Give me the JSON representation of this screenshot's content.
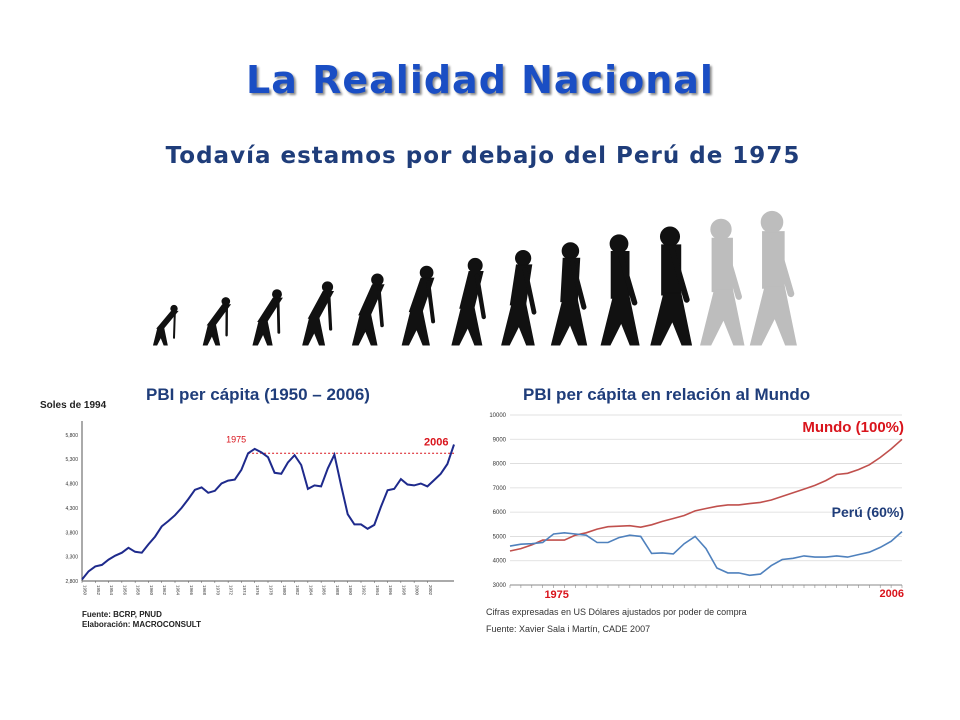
{
  "header": {
    "title": "La Realidad Nacional",
    "subtitle": "Todavía estamos por debajo del Perú de 1975"
  },
  "illustration": {
    "icon": "human-evolution-silhouettes-icon",
    "figure_count": 13
  },
  "colors": {
    "title": "#1a4ec4",
    "subtitle": "#1f3d7a",
    "left_line": "#1e2a8c",
    "mundo": "#c0504d",
    "peru": "#4f81bd",
    "accent_red": "#d9141c"
  },
  "chart_data": [
    {
      "type": "line",
      "title": "PBI per cápita (1950 – 2006)",
      "ylabel": "Soles de 1994",
      "ylim": [
        2800,
        6000
      ],
      "yticks": [
        "2,800",
        "3,300",
        "3,800",
        "4,300",
        "4,800",
        "5,300",
        "5,800"
      ],
      "xticks": [
        "1950",
        "1952",
        "1954",
        "1956",
        "1958",
        "1960",
        "1962",
        "1964",
        "1966",
        "1968",
        "1970",
        "1972",
        "1974",
        "1976",
        "1978",
        "1980",
        "1982",
        "1984",
        "1986",
        "1988",
        "1990",
        "1992",
        "1994",
        "1996",
        "1998",
        "2000",
        "2002"
      ],
      "x": [
        1950,
        1951,
        1952,
        1953,
        1954,
        1955,
        1956,
        1957,
        1958,
        1959,
        1960,
        1961,
        1962,
        1963,
        1964,
        1965,
        1966,
        1967,
        1968,
        1969,
        1970,
        1971,
        1972,
        1973,
        1974,
        1975,
        1976,
        1977,
        1978,
        1979,
        1980,
        1981,
        1982,
        1983,
        1984,
        1985,
        1986,
        1987,
        1988,
        1989,
        1990,
        1991,
        1992,
        1993,
        1994,
        1995,
        1996,
        1997,
        1998,
        1999,
        2000,
        2001,
        2002,
        2003,
        2004,
        2005,
        2006
      ],
      "series": [
        {
          "values": [
            2830,
            3000,
            3100,
            3130,
            3240,
            3320,
            3380,
            3480,
            3400,
            3380,
            3550,
            3710,
            3920,
            4030,
            4150,
            4300,
            4480,
            4670,
            4720,
            4610,
            4650,
            4800,
            4860,
            4880,
            5080,
            5420,
            5510,
            5440,
            5340,
            5020,
            5000,
            5230,
            5380,
            5180,
            4690,
            4760,
            4740,
            5110,
            5390,
            4760,
            4170,
            3960,
            3960,
            3870,
            3950,
            4320,
            4660,
            4690,
            4890,
            4780,
            4760,
            4800,
            4740,
            4870,
            5000,
            5200,
            5600
          ]
        }
      ],
      "annotations": {
        "reference_year": "1975",
        "end_year": "2006"
      },
      "source": "Fuente: BCRP, PNUD",
      "credit": "Elaboración: MACROCONSULT"
    },
    {
      "type": "line",
      "title": "PBI per cápita en relación al Mundo",
      "ylim": [
        3000,
        10000
      ],
      "yticks": [
        "3000",
        "4000",
        "5000",
        "6000",
        "7000",
        "8000",
        "9000",
        "10000"
      ],
      "x": [
        1970,
        1971,
        1972,
        1973,
        1974,
        1975,
        1976,
        1977,
        1978,
        1979,
        1980,
        1981,
        1982,
        1983,
        1984,
        1985,
        1986,
        1987,
        1988,
        1989,
        1990,
        1991,
        1992,
        1993,
        1994,
        1995,
        1996,
        1997,
        1998,
        1999,
        2000,
        2001,
        2002,
        2003,
        2004,
        2005,
        2006
      ],
      "series": [
        {
          "name": "Mundo (100%)",
          "values": [
            4400,
            4500,
            4650,
            4850,
            4850,
            4850,
            5050,
            5150,
            5300,
            5400,
            5420,
            5440,
            5380,
            5480,
            5620,
            5740,
            5860,
            6050,
            6150,
            6240,
            6300,
            6300,
            6350,
            6400,
            6500,
            6650,
            6800,
            6950,
            7100,
            7300,
            7550,
            7600,
            7750,
            7950,
            8250,
            8600,
            9000
          ]
        },
        {
          "name": "Perú (60%)",
          "values": [
            4600,
            4680,
            4700,
            4750,
            5100,
            5150,
            5100,
            5050,
            4750,
            4750,
            4950,
            5050,
            5000,
            4300,
            4320,
            4280,
            4700,
            5000,
            4500,
            3700,
            3500,
            3500,
            3400,
            3450,
            3800,
            4050,
            4100,
            4200,
            4150,
            4150,
            4200,
            4150,
            4250,
            4350,
            4550,
            4800,
            5200
          ]
        }
      ],
      "annotations": {
        "start_year": "1975",
        "end_year": "2006"
      },
      "notes": [
        "Cifras expresadas en US Dólares ajustados por poder de compra",
        "Fuente: Xavier Sala i Martín, CADE 2007"
      ]
    }
  ]
}
